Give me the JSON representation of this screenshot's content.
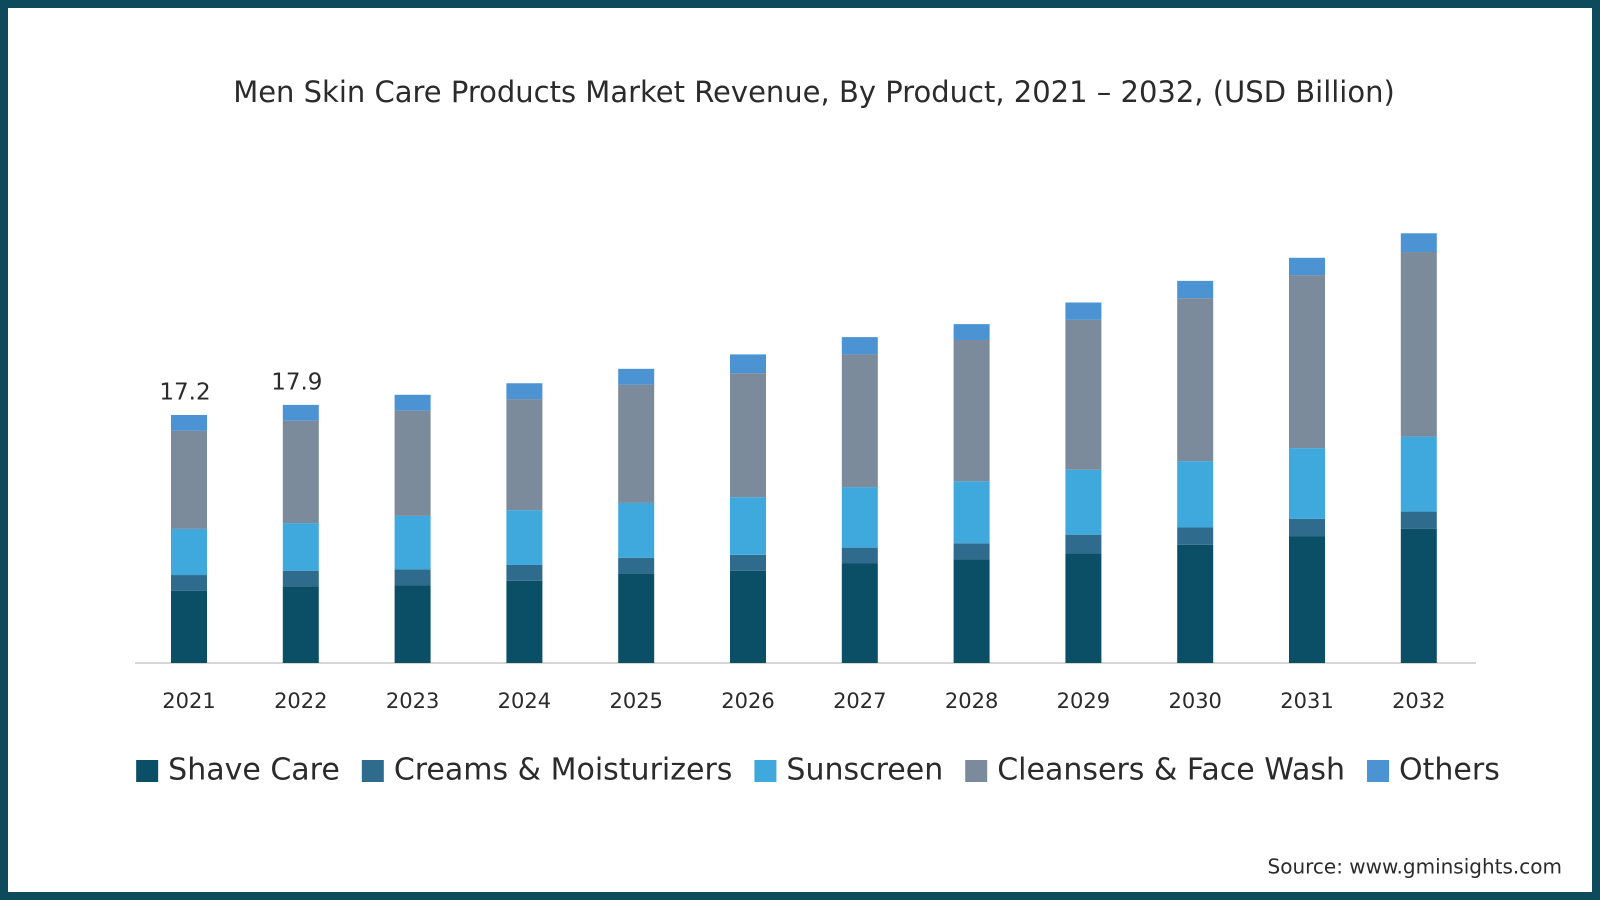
{
  "chart_data": {
    "type": "stacked_bar",
    "title": "Men Skin Care Products Market Revenue, By Product, 2021 – 2032, (USD Billion)",
    "categories": [
      "2021",
      "2022",
      "2023",
      "2024",
      "2025",
      "2026",
      "2027",
      "2028",
      "2029",
      "2030",
      "2031",
      "2032"
    ],
    "series": [
      {
        "name": "Shave Care",
        "color": "#0b4f66",
        "values": [
          5.0,
          5.3,
          5.4,
          5.7,
          6.2,
          6.4,
          6.9,
          7.2,
          7.6,
          8.2,
          8.8,
          9.3
        ]
      },
      {
        "name": "Creams & Moisturizers",
        "color": "#2f6b8c",
        "values": [
          1.1,
          1.1,
          1.1,
          1.1,
          1.1,
          1.1,
          1.1,
          1.1,
          1.3,
          1.2,
          1.2,
          1.2
        ]
      },
      {
        "name": "Sunscreen",
        "color": "#3fa9de",
        "values": [
          3.2,
          3.3,
          3.7,
          3.8,
          3.8,
          4.0,
          4.2,
          4.3,
          4.5,
          4.6,
          4.9,
          5.2
        ]
      },
      {
        "name": "Cleansers & Face Wash",
        "color": "#7b8b9b",
        "values": [
          6.8,
          7.1,
          7.3,
          7.7,
          8.2,
          8.6,
          9.2,
          9.8,
          10.4,
          11.3,
          12.0,
          12.8
        ]
      },
      {
        "name": "Others",
        "color": "#4b93d3",
        "values": [
          1.1,
          1.1,
          1.1,
          1.1,
          1.1,
          1.3,
          1.2,
          1.1,
          1.2,
          1.2,
          1.2,
          1.3
        ]
      }
    ],
    "totals": [
      17.2,
      17.9,
      null,
      null,
      null,
      null,
      null,
      null,
      null,
      null,
      null,
      null
    ],
    "source": "Source: www.gminsights.com"
  }
}
